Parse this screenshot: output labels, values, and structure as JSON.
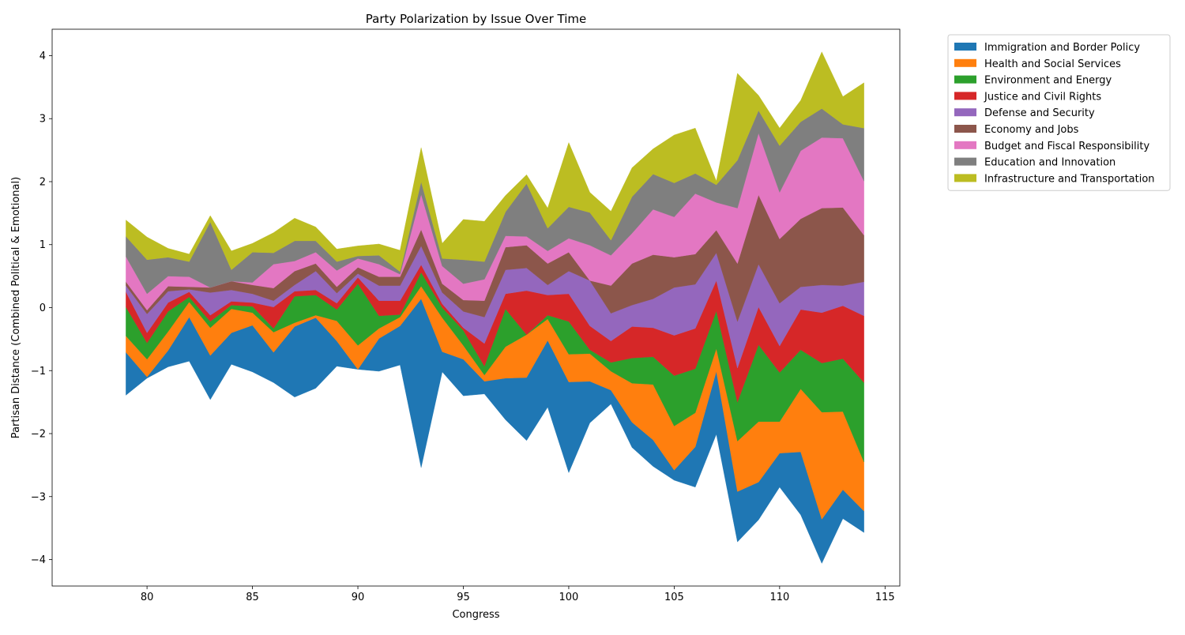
{
  "chart_data": {
    "type": "area",
    "title": "Party Polarization by Issue Over Time",
    "xlabel": "Congress",
    "ylabel": "Partisan Distance (Combined Political & Emotional)",
    "xlim": [
      75.5,
      115.7
    ],
    "ylim": [
      -4.42,
      4.42
    ],
    "xticks": [
      80,
      85,
      90,
      95,
      100,
      105,
      110,
      115
    ],
    "yticks": [
      -4,
      -3,
      -2,
      -1,
      0,
      1,
      2,
      3,
      4
    ],
    "grid": false,
    "legend_position": "outside-top-right",
    "baseline": "symmetric",
    "x": [
      79,
      80,
      81,
      82,
      83,
      84,
      85,
      86,
      87,
      88,
      89,
      90,
      91,
      92,
      93,
      94,
      95,
      96,
      97,
      98,
      99,
      100,
      101,
      102,
      103,
      104,
      105,
      106,
      107,
      108,
      109,
      110,
      111,
      112,
      113,
      114
    ],
    "series": [
      {
        "name": "Immigration and Border Policy",
        "color": "#1f77b4",
        "values": [
          0.68,
          0.02,
          0.26,
          0.7,
          0.7,
          0.5,
          0.74,
          0.48,
          1.12,
          1.12,
          0.4,
          0.0,
          0.52,
          0.62,
          2.68,
          0.32,
          0.58,
          0.2,
          0.66,
          1.0,
          1.06,
          1.44,
          0.66,
          0.22,
          0.4,
          0.42,
          0.16,
          0.64,
          1.0,
          0.8,
          0.6,
          0.54,
          1.0,
          0.7,
          0.46,
          0.34
        ]
      },
      {
        "name": "Health and Social Services",
        "color": "#ff7f0e",
        "values": [
          0.26,
          0.28,
          0.3,
          0.24,
          0.44,
          0.38,
          0.2,
          0.32,
          0.06,
          0.04,
          0.32,
          0.38,
          0.16,
          0.14,
          0.2,
          0.54,
          0.22,
          0.1,
          0.5,
          0.68,
          0.34,
          0.44,
          0.44,
          0.3,
          0.62,
          0.88,
          0.7,
          0.54,
          0.36,
          0.8,
          0.96,
          0.5,
          1.0,
          1.7,
          1.24,
          0.78
        ]
      },
      {
        "name": "Environment and Energy",
        "color": "#2ca02c",
        "values": [
          0.46,
          0.26,
          0.32,
          0.08,
          0.1,
          0.06,
          0.1,
          0.06,
          0.42,
          0.32,
          0.18,
          0.98,
          0.2,
          0.04,
          0.22,
          0.16,
          0.24,
          0.14,
          0.6,
          0.0,
          0.06,
          0.52,
          0.06,
          0.14,
          0.4,
          0.44,
          0.8,
          0.7,
          0.6,
          0.62,
          1.22,
          0.78,
          0.62,
          0.78,
          0.84,
          1.26
        ]
      },
      {
        "name": "Justice and Civil Rights",
        "color": "#d62728",
        "values": [
          0.24,
          0.16,
          0.14,
          0.08,
          0.1,
          0.06,
          0.06,
          0.34,
          0.08,
          0.08,
          0.1,
          0.1,
          0.24,
          0.22,
          0.12,
          0.06,
          0.04,
          0.36,
          0.24,
          0.7,
          0.32,
          0.44,
          0.38,
          0.34,
          0.5,
          0.46,
          0.64,
          0.64,
          0.48,
          0.54,
          0.6,
          0.42,
          0.64,
          0.8,
          0.84,
          1.06
        ]
      },
      {
        "name": "Defense and Security",
        "color": "#9467bd",
        "values": [
          0.1,
          0.3,
          0.18,
          0.04,
          0.36,
          0.18,
          0.14,
          0.1,
          0.1,
          0.3,
          0.16,
          0.06,
          0.24,
          0.24,
          0.3,
          0.18,
          0.26,
          0.42,
          0.38,
          0.36,
          0.16,
          0.36,
          0.72,
          0.44,
          0.34,
          0.46,
          0.76,
          0.7,
          0.44,
          0.74,
          0.68,
          0.68,
          0.36,
          0.44,
          0.32,
          0.54
        ]
      },
      {
        "name": "Economy and Jobs",
        "color": "#8c564b",
        "values": [
          0.06,
          0.06,
          0.08,
          0.04,
          0.08,
          0.14,
          0.14,
          0.2,
          0.22,
          0.12,
          0.1,
          0.1,
          0.14,
          0.14,
          0.26,
          0.14,
          0.18,
          0.26,
          0.36,
          0.36,
          0.34,
          0.3,
          0.0,
          0.44,
          0.66,
          0.7,
          0.48,
          0.48,
          0.36,
          0.92,
          1.1,
          1.02,
          1.08,
          1.22,
          1.24,
          0.74
        ]
      },
      {
        "name": "Budget and Fiscal Responsibility",
        "color": "#e377c2",
        "values": [
          0.4,
          0.26,
          0.16,
          0.16,
          0.0,
          0.0,
          0.04,
          0.38,
          0.16,
          0.18,
          0.26,
          0.14,
          0.2,
          0.04,
          0.56,
          0.28,
          0.26,
          0.34,
          0.18,
          0.14,
          0.2,
          0.22,
          0.56,
          0.48,
          0.48,
          0.72,
          0.64,
          0.96,
          0.44,
          0.88,
          0.98,
          0.74,
          1.08,
          1.12,
          1.1,
          0.86
        ]
      },
      {
        "name": "Education and Innovation",
        "color": "#7f7f7f",
        "values": [
          0.32,
          0.54,
          0.3,
          0.24,
          1.04,
          0.18,
          0.48,
          0.18,
          0.32,
          0.18,
          0.14,
          0.04,
          0.14,
          0.04,
          0.2,
          0.12,
          0.38,
          0.28,
          0.38,
          0.84,
          0.36,
          0.5,
          0.52,
          0.24,
          0.58,
          0.56,
          0.54,
          0.32,
          0.28,
          0.76,
          0.36,
          0.74,
          0.46,
          0.46,
          0.22,
          0.84
        ]
      },
      {
        "name": "Infrastructure and Transportation",
        "color": "#bcbd22",
        "values": [
          0.26,
          0.36,
          0.14,
          0.12,
          0.1,
          0.3,
          0.14,
          0.32,
          0.36,
          0.22,
          0.2,
          0.16,
          0.18,
          0.34,
          0.54,
          0.24,
          0.64,
          0.64,
          0.26,
          0.14,
          0.32,
          1.02,
          0.32,
          0.46,
          0.46,
          0.4,
          0.76,
          0.72,
          0.06,
          1.38,
          0.24,
          0.28,
          0.34,
          0.9,
          0.44,
          0.72
        ]
      }
    ]
  }
}
